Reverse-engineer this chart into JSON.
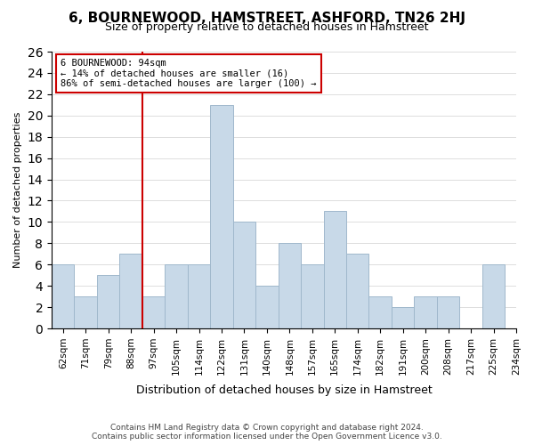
{
  "title": "6, BOURNEWOOD, HAMSTREET, ASHFORD, TN26 2HJ",
  "subtitle": "Size of property relative to detached houses in Hamstreet",
  "xlabel": "Distribution of detached houses by size in Hamstreet",
  "ylabel": "Number of detached properties",
  "bin_labels": [
    "62sqm",
    "71sqm",
    "79sqm",
    "88sqm",
    "97sqm",
    "105sqm",
    "114sqm",
    "122sqm",
    "131sqm",
    "140sqm",
    "148sqm",
    "157sqm",
    "165sqm",
    "174sqm",
    "182sqm",
    "191sqm",
    "200sqm",
    "208sqm",
    "217sqm",
    "225sqm",
    "234sqm"
  ],
  "counts": [
    6,
    3,
    5,
    7,
    3,
    6,
    6,
    21,
    10,
    4,
    8,
    6,
    11,
    7,
    3,
    2,
    3,
    3,
    0,
    6
  ],
  "bar_color": "#c8d9e8",
  "bar_edge_color": "#a0b8cc",
  "vline_color": "#cc0000",
  "annotation_text_line1": "6 BOURNEWOOD: 94sqm",
  "annotation_text_line2": "← 14% of detached houses are smaller (16)",
  "annotation_text_line3": "86% of semi-detached houses are larger (100) →",
  "annotation_box_color": "#ffffff",
  "annotation_box_edge": "#cc0000",
  "ylim": [
    0,
    26
  ],
  "yticks": [
    0,
    2,
    4,
    6,
    8,
    10,
    12,
    14,
    16,
    18,
    20,
    22,
    24,
    26
  ],
  "footer_line1": "Contains HM Land Registry data © Crown copyright and database right 2024.",
  "footer_line2": "Contains public sector information licensed under the Open Government Licence v3.0.",
  "background_color": "#ffffff",
  "grid_color": "#dddddd"
}
